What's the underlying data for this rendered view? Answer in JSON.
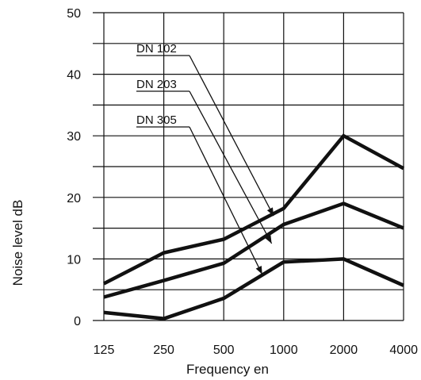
{
  "chart_data": {
    "type": "line",
    "xlabel": "Frequency en",
    "ylabel": "Noise level dB",
    "x_scale": "log2",
    "categories": [
      "125",
      "250",
      "500",
      "1000",
      "2000",
      "4000"
    ],
    "x": [
      125,
      250,
      500,
      1000,
      2000,
      4000
    ],
    "ylim": [
      0,
      50
    ],
    "yticks": [
      0,
      10,
      20,
      30,
      40,
      50
    ],
    "grid": true,
    "legend": "labels with leader lines inside plot",
    "series": [
      {
        "name": "DN  102",
        "values": [
          6,
          11,
          13.2,
          18.2,
          30,
          24.7
        ]
      },
      {
        "name": "DN  203",
        "values": [
          3.8,
          6.5,
          9.3,
          15.6,
          19,
          15
        ]
      },
      {
        "name": "DN  305",
        "values": [
          1.3,
          0.3,
          3.6,
          9.5,
          10,
          5.7
        ]
      }
    ],
    "series_label_targets": [
      {
        "x": 890,
        "y": 17
      },
      {
        "x": 870,
        "y": 12.5
      },
      {
        "x": 780,
        "y": 7.5
      }
    ]
  }
}
